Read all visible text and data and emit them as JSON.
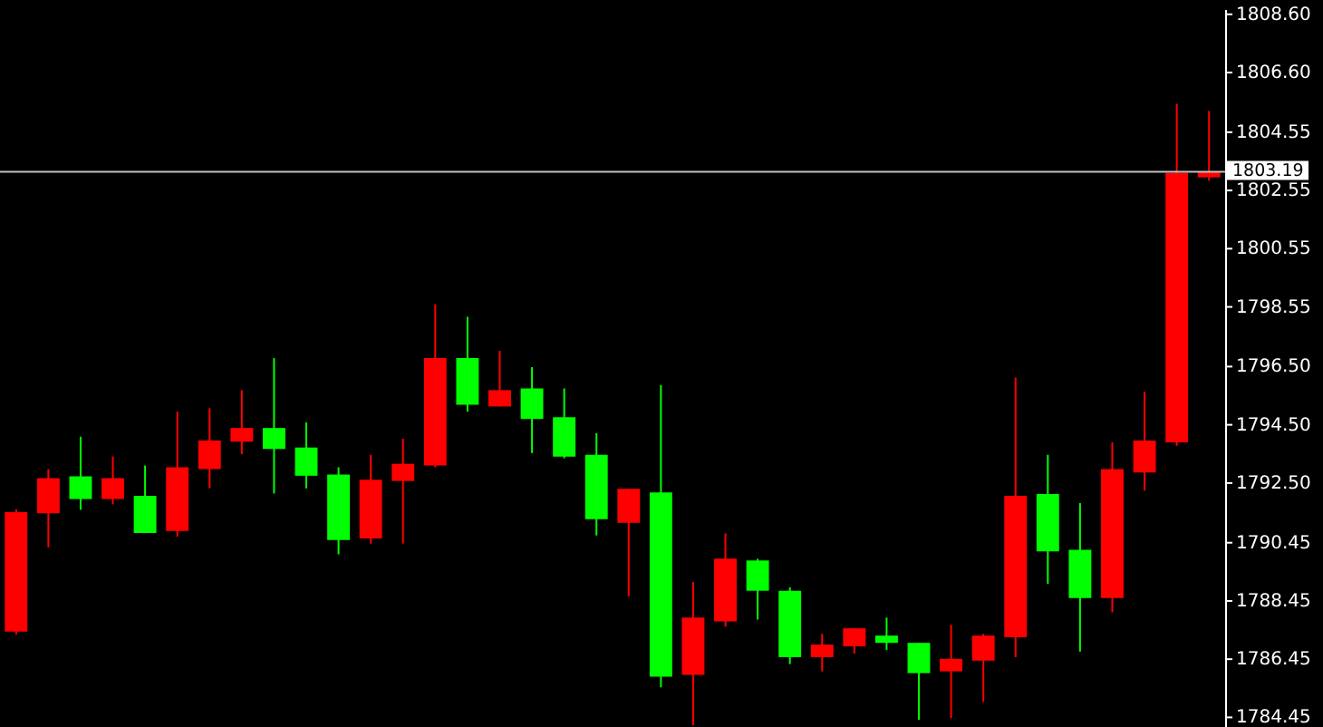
{
  "chart_data": {
    "type": "candlestick",
    "categories": [
      null,
      null,
      null,
      null,
      null,
      null,
      null,
      null,
      null,
      null,
      null,
      null,
      null,
      null,
      null,
      null,
      null,
      null,
      null,
      null,
      null,
      null,
      null,
      null,
      null,
      null,
      null,
      null,
      null,
      null,
      null,
      null,
      null,
      null,
      null,
      null,
      null,
      null
    ],
    "ohlc": [
      [
        1787.4,
        1791.6,
        1787.3,
        1791.5
      ],
      [
        1791.46,
        1792.98,
        1790.29,
        1792.67
      ],
      [
        1792.73,
        1794.09,
        1791.58,
        1791.95
      ],
      [
        1791.95,
        1793.41,
        1791.77,
        1792.67
      ],
      [
        1792.06,
        1793.1,
        1790.78,
        1790.78
      ],
      [
        1790.85,
        1794.95,
        1790.66,
        1793.04
      ],
      [
        1792.98,
        1795.07,
        1792.32,
        1793.96
      ],
      [
        1793.92,
        1795.69,
        1793.49,
        1794.39
      ],
      [
        1794.39,
        1796.79,
        1792.14,
        1793.67
      ],
      [
        1793.72,
        1794.58,
        1792.32,
        1792.75
      ],
      [
        1792.79,
        1793.04,
        1790.05,
        1790.54
      ],
      [
        1790.6,
        1793.47,
        1790.42,
        1792.61
      ],
      [
        1792.57,
        1794.02,
        1790.42,
        1793.16
      ],
      [
        1793.1,
        1798.64,
        1793.04,
        1796.79
      ],
      [
        1796.79,
        1798.21,
        1794.95,
        1795.19
      ],
      [
        1795.13,
        1797.04,
        1795.13,
        1795.69
      ],
      [
        1795.75,
        1796.48,
        1793.53,
        1794.7
      ],
      [
        1794.76,
        1795.75,
        1793.35,
        1793.41
      ],
      [
        1793.47,
        1794.21,
        1790.7,
        1791.26
      ],
      [
        1791.13,
        1792.3,
        1788.61,
        1792.3
      ],
      [
        1792.18,
        1795.87,
        1785.48,
        1785.85
      ],
      [
        1785.91,
        1789.1,
        1784.18,
        1787.88
      ],
      [
        1787.75,
        1790.77,
        1787.57,
        1789.9
      ],
      [
        1789.84,
        1789.9,
        1787.81,
        1788.8
      ],
      [
        1788.8,
        1788.92,
        1786.28,
        1786.52
      ],
      [
        1786.52,
        1787.32,
        1786.03,
        1786.95
      ],
      [
        1786.89,
        1787.51,
        1786.64,
        1787.51
      ],
      [
        1787.26,
        1787.88,
        1786.77,
        1787.01
      ],
      [
        1787.01,
        1787.01,
        1784.37,
        1785.97
      ],
      [
        1786.03,
        1787.63,
        1784.43,
        1786.46
      ],
      [
        1786.4,
        1787.32,
        1784.98,
        1787.26
      ],
      [
        1787.2,
        1796.12,
        1786.52,
        1792.06
      ],
      [
        1792.12,
        1793.47,
        1789.04,
        1790.15
      ],
      [
        1790.21,
        1791.81,
        1786.71,
        1788.55
      ],
      [
        1788.55,
        1793.9,
        1788.06,
        1792.98
      ],
      [
        1792.86,
        1795.63,
        1792.24,
        1793.96
      ],
      [
        1793.9,
        1805.53,
        1793.78,
        1803.15
      ],
      [
        1803.0,
        1805.28,
        1802.88,
        1803.19
      ]
    ],
    "colors": [
      "#ff0000",
      "#ff0000",
      "#00ff00",
      "#ff0000",
      "#00ff00",
      "#ff0000",
      "#ff0000",
      "#ff0000",
      "#00ff00",
      "#00ff00",
      "#00ff00",
      "#ff0000",
      "#ff0000",
      "#ff0000",
      "#00ff00",
      "#ff0000",
      "#00ff00",
      "#00ff00",
      "#00ff00",
      "#ff0000",
      "#00ff00",
      "#ff0000",
      "#ff0000",
      "#00ff00",
      "#00ff00",
      "#ff0000",
      "#ff0000",
      "#00ff00",
      "#00ff00",
      "#ff0000",
      "#ff0000",
      "#ff0000",
      "#00ff00",
      "#00ff00",
      "#ff0000",
      "#ff0000",
      "#ff0000",
      "#ff0000"
    ],
    "ylim": [
      1784.12,
      1808.78
    ],
    "yticks": [
      {
        "value": 1808.6,
        "label": "1808.60"
      },
      {
        "value": 1806.6,
        "label": "1806.60"
      },
      {
        "value": 1804.55,
        "label": "1804.55"
      },
      {
        "value": 1802.55,
        "label": "1802.55"
      },
      {
        "value": 1800.55,
        "label": "1800.55"
      },
      {
        "value": 1798.55,
        "label": "1798.55"
      },
      {
        "value": 1796.5,
        "label": "1796.50"
      },
      {
        "value": 1794.5,
        "label": "1794.50"
      },
      {
        "value": 1792.5,
        "label": "1792.50"
      },
      {
        "value": 1790.45,
        "label": "1790.45"
      },
      {
        "value": 1788.45,
        "label": "1788.45"
      },
      {
        "value": 1786.45,
        "label": "1786.45"
      },
      {
        "value": 1784.45,
        "label": "1784.45"
      }
    ],
    "ref_lines": [
      {
        "axis": "y",
        "value": 1803.19,
        "label": "1803.19",
        "color": "#c0c0c0"
      }
    ],
    "grid": false,
    "tick_labels": "y"
  }
}
